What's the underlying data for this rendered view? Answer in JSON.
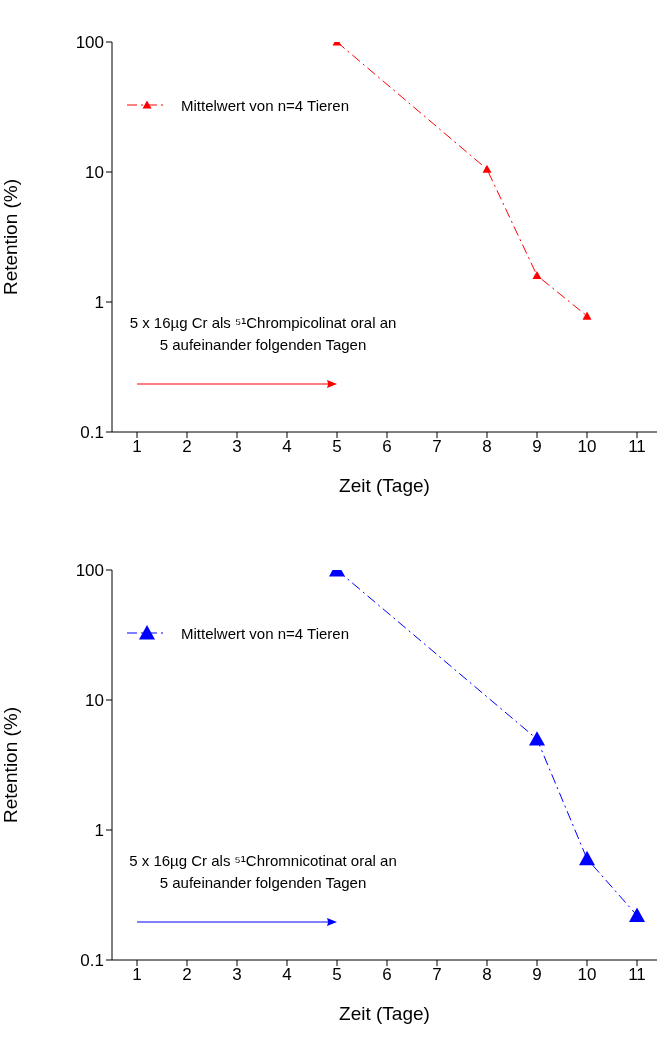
{
  "chart_data": [
    {
      "type": "line",
      "xlabel": "Zeit (Tage)",
      "ylabel": "Retention (%)",
      "log": "y",
      "xlim": [
        0.5,
        11.4
      ],
      "xticks": [
        1,
        2,
        3,
        4,
        5,
        6,
        7,
        8,
        9,
        10,
        11
      ],
      "ylim": [
        0.1,
        100
      ],
      "yticks": [
        0.1,
        1,
        10,
        100
      ],
      "x": [
        5,
        8,
        9,
        10
      ],
      "series": [
        {
          "name": "Mittelwert von n=4 Tieren",
          "color": "#ff0000",
          "values": [
            100,
            10.5,
            1.6,
            0.78
          ]
        }
      ],
      "marker": "triangle",
      "line_style": "dashed",
      "legend": "top left",
      "grid": false,
      "annotations": [
        "5 x 16µg Cr als ⁵¹Chrompicolinat oral an 5 aufeinander folgenden Tagen"
      ]
    },
    {
      "type": "line",
      "xlabel": "Zeit (Tage)",
      "ylabel": "Retention (%)",
      "log": "y",
      "xlim": [
        0.5,
        11.4
      ],
      "xticks": [
        1,
        2,
        3,
        4,
        5,
        6,
        7,
        8,
        9,
        10,
        11
      ],
      "ylim": [
        0.1,
        100
      ],
      "yticks": [
        0.1,
        1,
        10,
        100
      ],
      "x": [
        5,
        9,
        10,
        11
      ],
      "series": [
        {
          "name": "Mittelwert von n=4 Tieren",
          "color": "#0000ff",
          "values": [
            100,
            5,
            0.6,
            0.22
          ]
        }
      ],
      "marker": "triangle",
      "line_style": "dashed",
      "legend": "top left",
      "grid": false,
      "annotations": [
        "5 x 16µg Cr als ⁵¹Chromnicotinat oral an 5 aufeinander folgenden Tagen"
      ]
    }
  ]
}
